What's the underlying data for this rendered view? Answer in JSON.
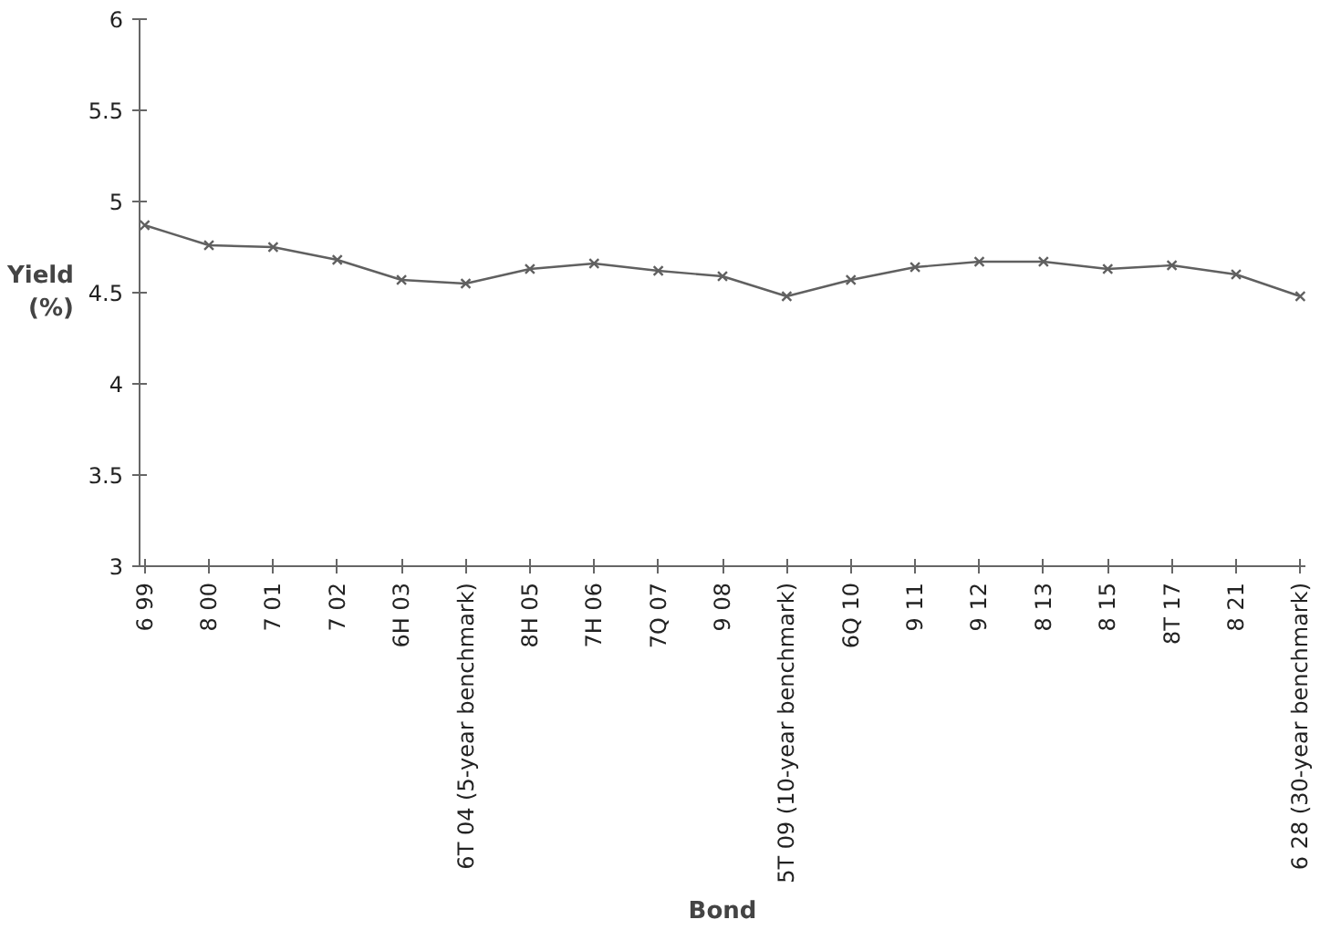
{
  "chart_data": {
    "type": "line",
    "xlabel": "Bond",
    "ylabel": "Yield\n(%)",
    "categories": [
      "6 99",
      "8 00",
      "7 01",
      "7 02",
      "6H 03",
      "6T 04 (5-year benchmark)",
      "8H 05",
      "7H 06",
      "7Q 07",
      "9 08",
      "5T 09 (10-year benchmark)",
      "6Q 10",
      "9 11",
      "9 12",
      "8 13",
      "8 15",
      "8T 17",
      "8 21",
      "6 28 (30-year benchmark)"
    ],
    "series": [
      {
        "color": "#606060",
        "values": [
          4.87,
          4.76,
          4.75,
          4.68,
          4.57,
          4.55,
          4.63,
          4.66,
          4.62,
          4.59,
          4.48,
          4.57,
          4.64,
          4.67,
          4.67,
          4.63,
          4.65,
          4.6,
          4.48
        ]
      }
    ],
    "ylim": [
      3,
      6
    ],
    "yticks": [
      3,
      3.5,
      4,
      4.5,
      5,
      5.5,
      6
    ],
    "grid": false,
    "marker": "cross",
    "line_style": "solid"
  }
}
